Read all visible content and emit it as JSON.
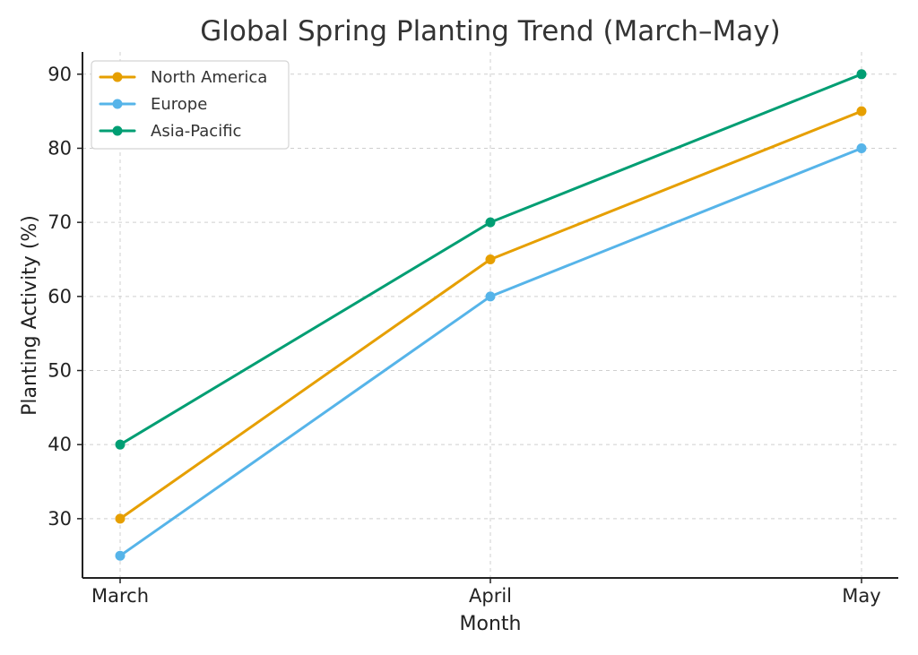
{
  "chart_data": {
    "type": "line",
    "title": "Global Spring Planting Trend (March–May)",
    "xlabel": "Month",
    "ylabel": "Planting Activity (%)",
    "categories": [
      "March",
      "April",
      "May"
    ],
    "y_ticks": [
      "30",
      "40",
      "50",
      "60",
      "70",
      "80",
      "90"
    ],
    "ylim": [
      22,
      93
    ],
    "grid": true,
    "legend_position": "top-left",
    "series": [
      {
        "name": "North America",
        "color": "#E69F00",
        "values": [
          30,
          65,
          85
        ]
      },
      {
        "name": "Europe",
        "color": "#56B4E9",
        "values": [
          25,
          60,
          80
        ]
      },
      {
        "name": "Asia-Pacific",
        "color": "#009E73",
        "values": [
          40,
          70,
          90
        ]
      }
    ]
  }
}
